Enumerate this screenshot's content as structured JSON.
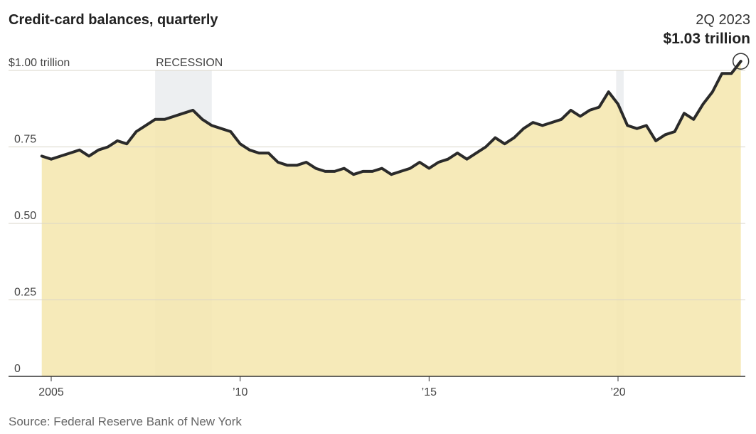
{
  "header": {
    "title": "Credit-card balances, quarterly",
    "callout_period": "2Q 2023",
    "callout_value": "$1.03 trillion"
  },
  "source": "Source: Federal Reserve Bank of New York",
  "colors": {
    "fill": "#f5e6ad",
    "line": "#2a2a2a",
    "recession": "#c8ccd2",
    "grid": "#d9d5c8"
  },
  "chart_data": {
    "type": "area",
    "title": "Credit-card balances, quarterly",
    "unit": "$ trillion",
    "ylim": [
      0,
      1.03
    ],
    "yticks": [
      {
        "value": 0,
        "label": "0"
      },
      {
        "value": 0.25,
        "label": "0.25"
      },
      {
        "value": 0.5,
        "label": "0.50"
      },
      {
        "value": 0.75,
        "label": "0.75"
      },
      {
        "value": 1.0,
        "label": "$1.00 trillion"
      }
    ],
    "xticks": [
      {
        "value": 2005,
        "label": "2005"
      },
      {
        "value": 2010,
        "label": "’10"
      },
      {
        "value": 2015,
        "label": "’15"
      },
      {
        "value": 2020,
        "label": "’20"
      }
    ],
    "recessions": [
      {
        "start": 2007.75,
        "end": 2009.25,
        "label": "RECESSION"
      },
      {
        "start": 2019.95,
        "end": 2020.15,
        "label": ""
      }
    ],
    "grid": true,
    "x": [
      2004.75,
      2005.0,
      2005.25,
      2005.5,
      2005.75,
      2006.0,
      2006.25,
      2006.5,
      2006.75,
      2007.0,
      2007.25,
      2007.5,
      2007.75,
      2008.0,
      2008.25,
      2008.5,
      2008.75,
      2009.0,
      2009.25,
      2009.5,
      2009.75,
      2010.0,
      2010.25,
      2010.5,
      2010.75,
      2011.0,
      2011.25,
      2011.5,
      2011.75,
      2012.0,
      2012.25,
      2012.5,
      2012.75,
      2013.0,
      2013.25,
      2013.5,
      2013.75,
      2014.0,
      2014.25,
      2014.5,
      2014.75,
      2015.0,
      2015.25,
      2015.5,
      2015.75,
      2016.0,
      2016.25,
      2016.5,
      2016.75,
      2017.0,
      2017.25,
      2017.5,
      2017.75,
      2018.0,
      2018.25,
      2018.5,
      2018.75,
      2019.0,
      2019.25,
      2019.5,
      2019.75,
      2020.0,
      2020.25,
      2020.5,
      2020.75,
      2021.0,
      2021.25,
      2021.5,
      2021.75,
      2022.0,
      2022.25,
      2022.5,
      2022.75,
      2023.0,
      2023.25
    ],
    "values": [
      0.72,
      0.71,
      0.72,
      0.73,
      0.74,
      0.72,
      0.74,
      0.75,
      0.77,
      0.76,
      0.8,
      0.82,
      0.84,
      0.84,
      0.85,
      0.86,
      0.87,
      0.84,
      0.82,
      0.81,
      0.8,
      0.76,
      0.74,
      0.73,
      0.73,
      0.7,
      0.69,
      0.69,
      0.7,
      0.68,
      0.67,
      0.67,
      0.68,
      0.66,
      0.67,
      0.67,
      0.68,
      0.66,
      0.67,
      0.68,
      0.7,
      0.68,
      0.7,
      0.71,
      0.73,
      0.71,
      0.73,
      0.75,
      0.78,
      0.76,
      0.78,
      0.81,
      0.83,
      0.82,
      0.83,
      0.84,
      0.87,
      0.85,
      0.87,
      0.88,
      0.93,
      0.89,
      0.82,
      0.81,
      0.82,
      0.77,
      0.79,
      0.8,
      0.86,
      0.84,
      0.89,
      0.93,
      0.99,
      0.99,
      1.03
    ]
  }
}
